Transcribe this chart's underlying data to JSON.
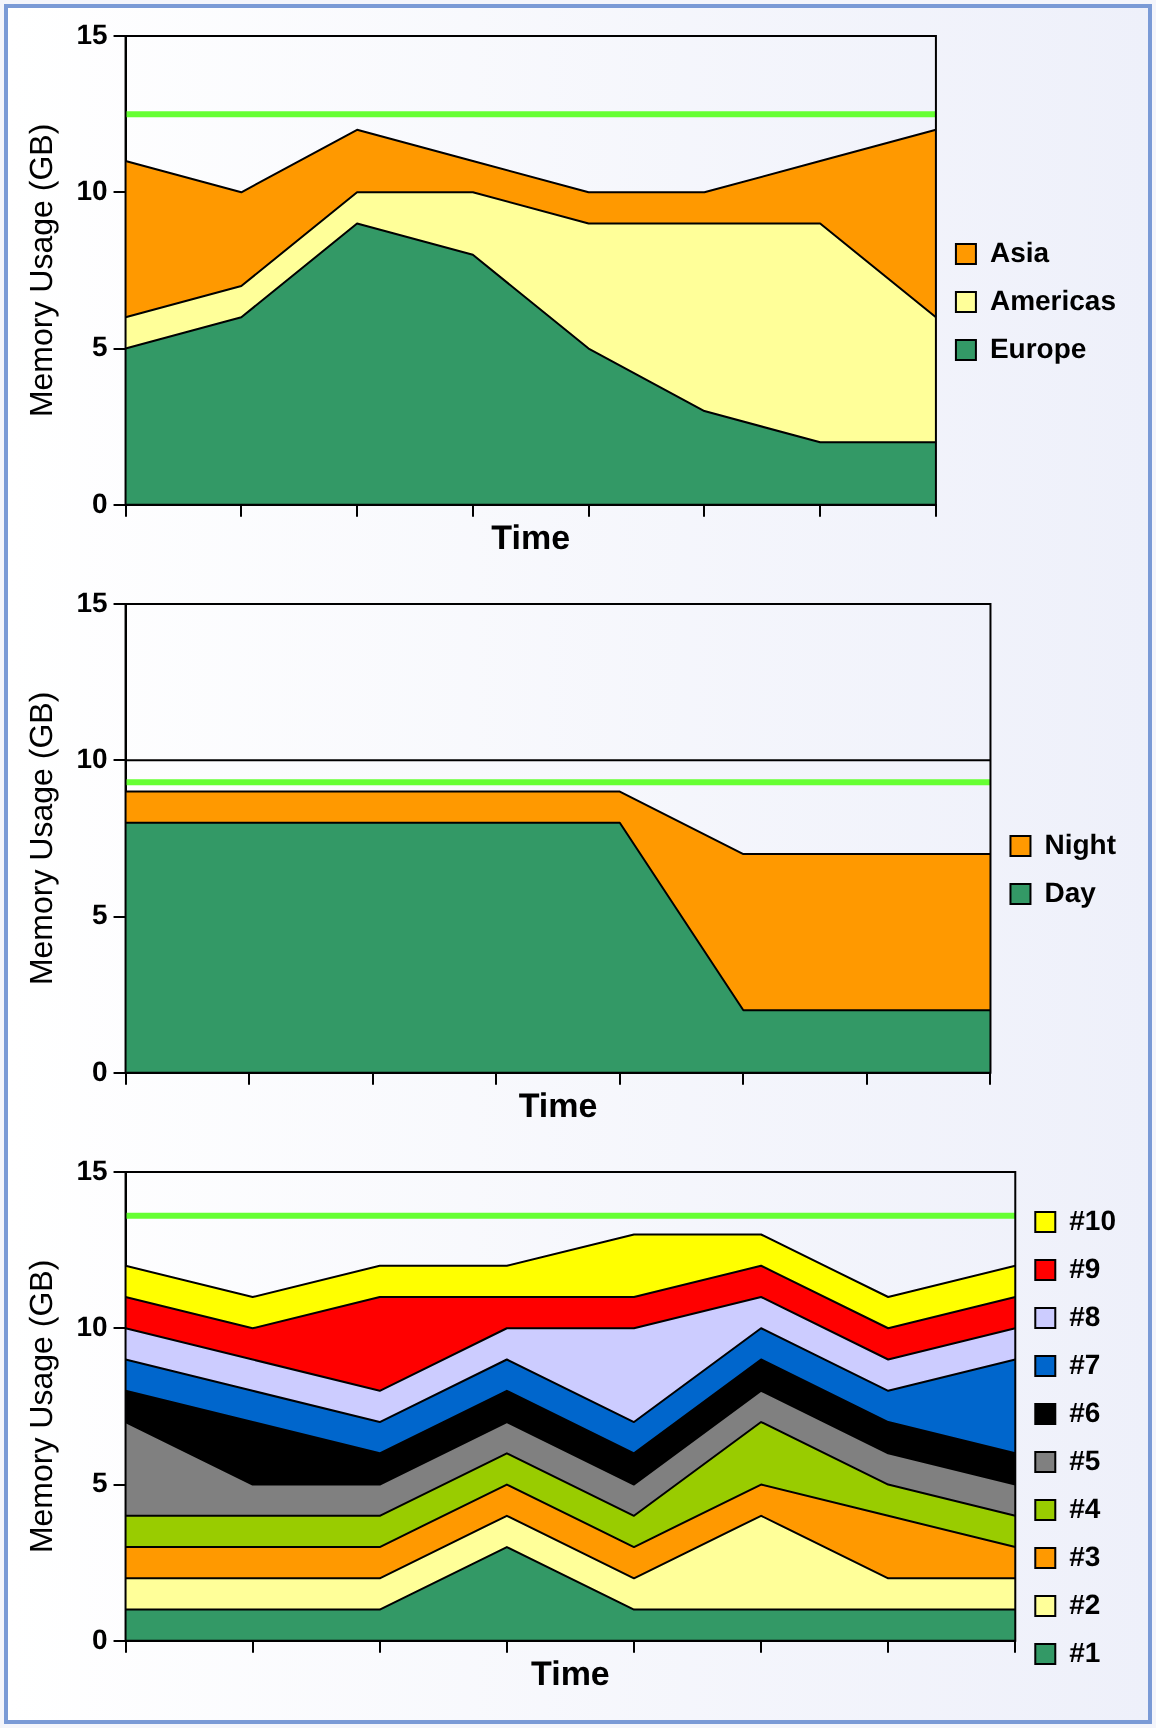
{
  "chart_data": [
    {
      "type": "area",
      "stacked": true,
      "xlabel": "Time",
      "ylabel": "Memory Usage (GB)",
      "categories": [
        null,
        null,
        null,
        null,
        null,
        null,
        null,
        null
      ],
      "ylim": [
        0,
        15
      ],
      "yticks": [
        0,
        5,
        10,
        15
      ],
      "grid": false,
      "legend": "right",
      "marker": "none",
      "series": [
        {
          "name": "Europe",
          "color": "#339966",
          "values": [
            5,
            6,
            9,
            8,
            5,
            3,
            2,
            2
          ]
        },
        {
          "name": "Americas",
          "color": "#ffff99",
          "values": [
            1,
            1,
            1,
            2,
            4,
            6,
            7,
            4
          ]
        },
        {
          "name": "Asia",
          "color": "#ff9900",
          "values": [
            5,
            3,
            2,
            1,
            1,
            1,
            2,
            6
          ]
        }
      ],
      "ref_lines": [
        {
          "axis": "y",
          "value": 12.5,
          "color": "#66ff33"
        }
      ]
    },
    {
      "type": "area",
      "stacked": true,
      "xlabel": "Time",
      "ylabel": "Memory Usage (GB)",
      "categories": [
        null,
        null,
        null,
        null,
        null,
        null,
        null,
        null
      ],
      "ylim": [
        0,
        15
      ],
      "yticks": [
        0,
        5,
        10,
        15
      ],
      "grid": false,
      "legend": "right",
      "marker": "none",
      "series": [
        {
          "name": "Day",
          "color": "#339966",
          "values": [
            8,
            8,
            8,
            8,
            8,
            2,
            2,
            2
          ]
        },
        {
          "name": "Night",
          "color": "#ff9900",
          "values": [
            1,
            1,
            1,
            1,
            1,
            5,
            5,
            5
          ]
        }
      ],
      "ref_lines": [
        {
          "axis": "y",
          "value": 10,
          "color": "#000000"
        },
        {
          "axis": "y",
          "value": 9.3,
          "color": "#66ff33"
        }
      ]
    },
    {
      "type": "area",
      "stacked": true,
      "xlabel": "Time",
      "ylabel": "Memory Usage (GB)",
      "categories": [
        null,
        null,
        null,
        null,
        null,
        null,
        null,
        null
      ],
      "ylim": [
        0,
        15
      ],
      "yticks": [
        0,
        5,
        10,
        15
      ],
      "grid": false,
      "legend": "right",
      "marker": "none",
      "series": [
        {
          "name": "#1",
          "color": "#339966",
          "values": [
            1,
            1,
            1,
            3,
            1,
            1,
            1,
            1
          ]
        },
        {
          "name": "#2",
          "color": "#ffff99",
          "values": [
            1,
            1,
            1,
            1,
            1,
            3,
            1,
            1
          ]
        },
        {
          "name": "#3",
          "color": "#ff9900",
          "values": [
            1,
            1,
            1,
            1,
            1,
            1,
            2,
            1
          ]
        },
        {
          "name": "#4",
          "color": "#99cc00",
          "values": [
            1,
            1,
            1,
            1,
            1,
            2,
            1,
            1
          ]
        },
        {
          "name": "#5",
          "color": "#808080",
          "values": [
            3,
            1,
            1,
            1,
            1,
            1,
            1,
            1
          ]
        },
        {
          "name": "#6",
          "color": "#000000",
          "values": [
            1,
            2,
            1,
            1,
            1,
            1,
            1,
            1
          ]
        },
        {
          "name": "#7",
          "color": "#0066cc",
          "values": [
            1,
            1,
            1,
            1,
            1,
            1,
            1,
            3
          ]
        },
        {
          "name": "#8",
          "color": "#ccccff",
          "values": [
            1,
            1,
            1,
            1,
            3,
            1,
            1,
            1
          ]
        },
        {
          "name": "#9",
          "color": "#ff0000",
          "values": [
            1,
            1,
            3,
            1,
            1,
            1,
            1,
            1
          ]
        },
        {
          "name": "#10",
          "color": "#ffff00",
          "values": [
            1,
            1,
            1,
            1,
            2,
            1,
            1,
            1
          ]
        }
      ],
      "ref_lines": [
        {
          "axis": "y",
          "value": 13.6,
          "color": "#66ff33"
        }
      ]
    }
  ]
}
